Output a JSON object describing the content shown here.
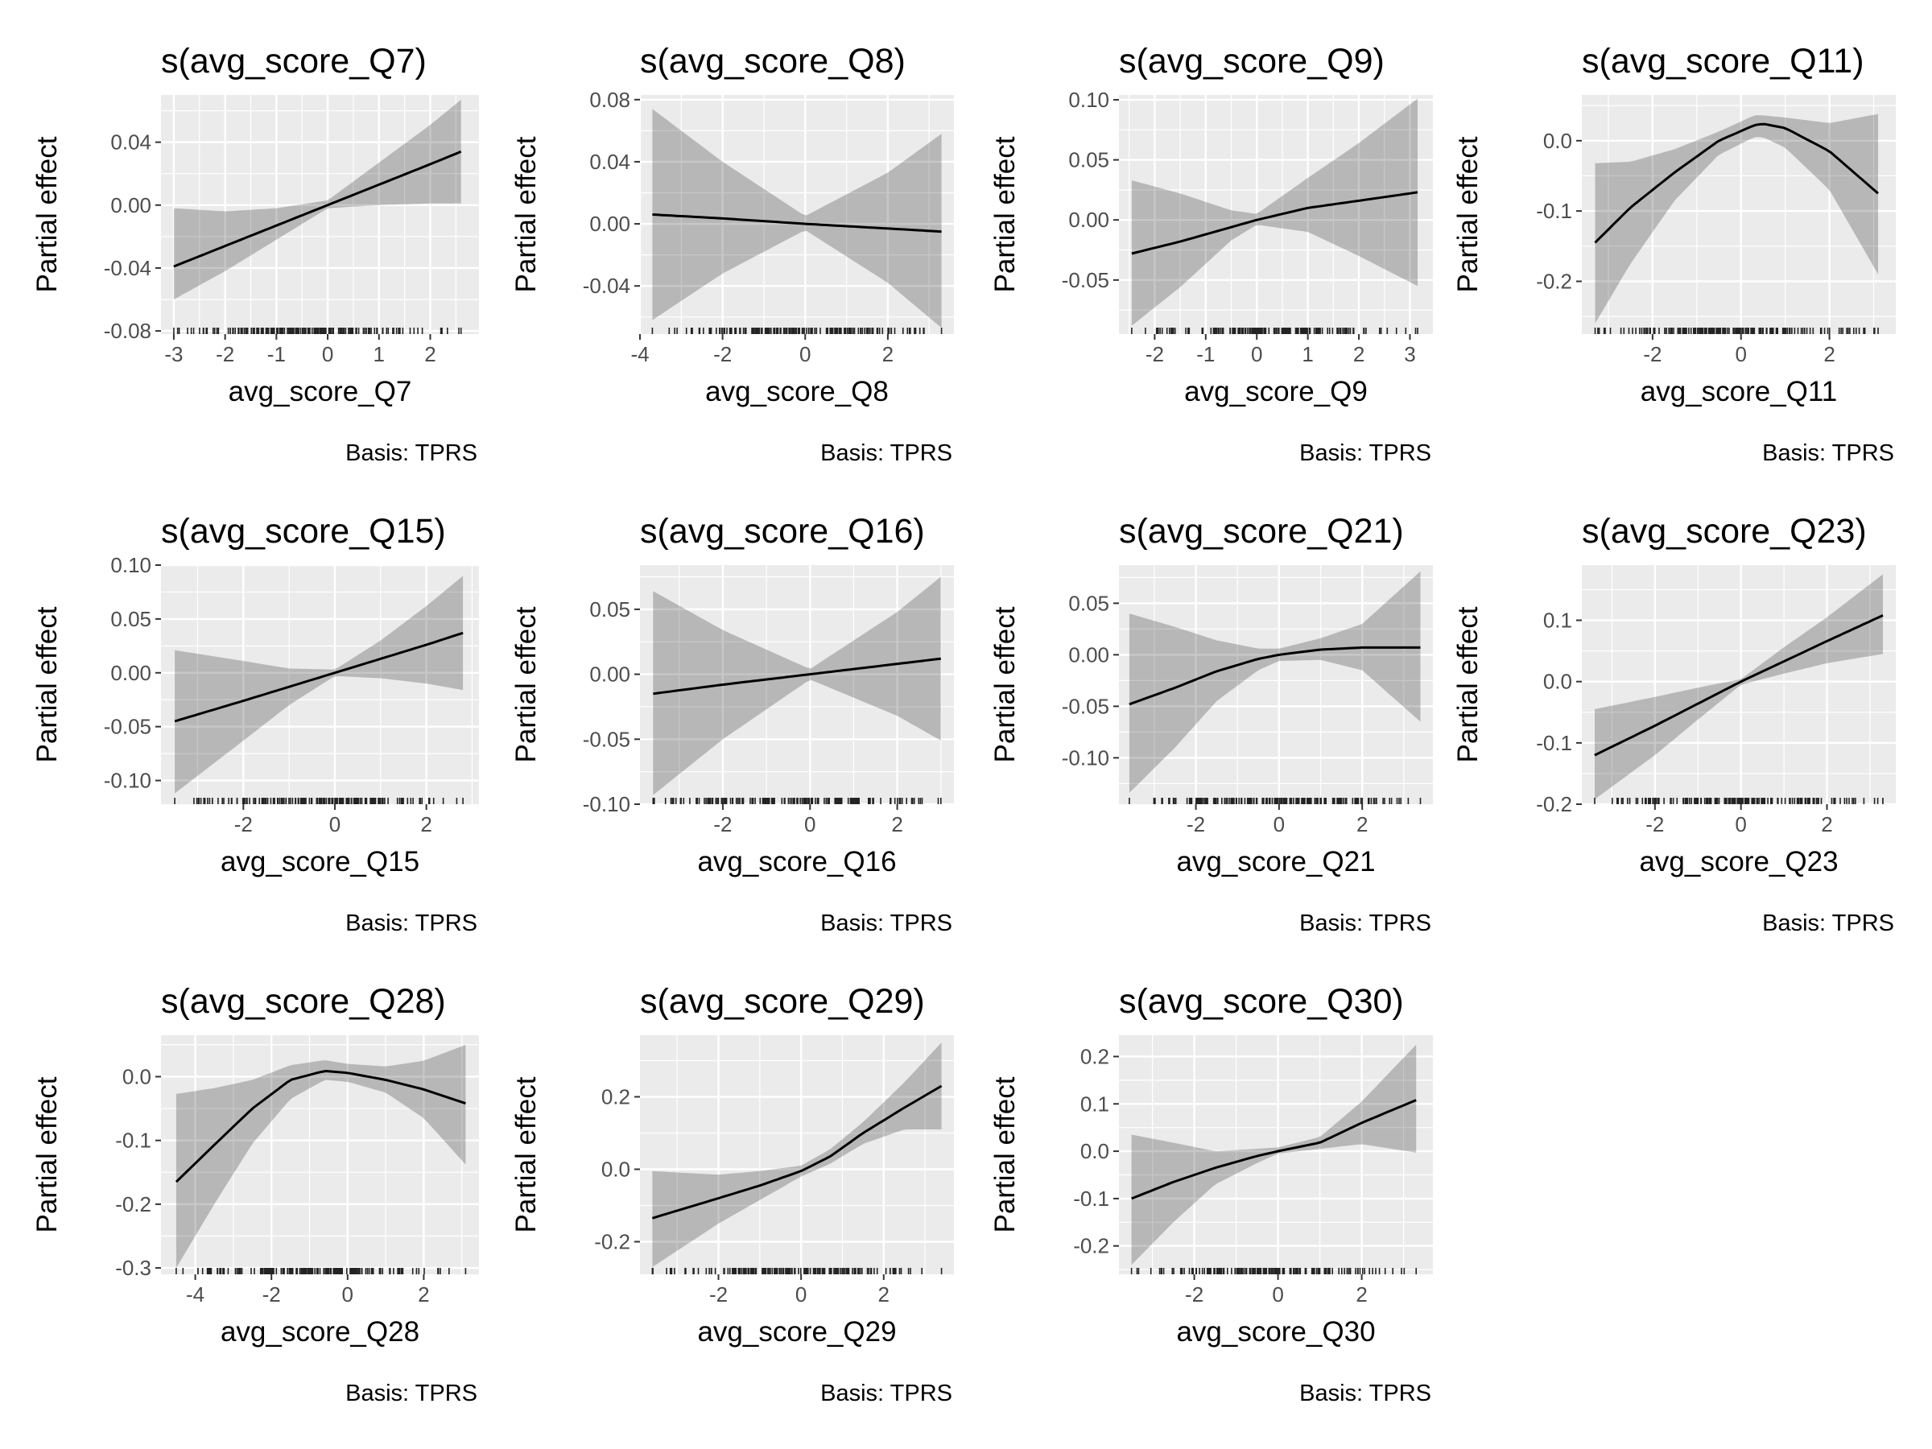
{
  "chart_data": [
    {
      "type": "line",
      "title": "s(avg_score_Q7)",
      "xlabel": "avg_score_Q7",
      "ylabel": "Partial effect",
      "caption": "Basis: TPRS",
      "xlim": [
        -3.25,
        2.95
      ],
      "ylim": [
        -0.082,
        0.07
      ],
      "xticks": [
        -3,
        -2,
        -1,
        0,
        1,
        2
      ],
      "xtick_labels": [
        "-3",
        "-2",
        "-1",
        "0",
        "1",
        "2"
      ],
      "yticks": [
        -0.08,
        -0.04,
        0.0,
        0.04
      ],
      "ytick_labels": [
        "-0.08",
        "-0.04",
        "0.00",
        "0.04"
      ],
      "series": [
        {
          "x": [
            -3.0,
            -2.0,
            -1.0,
            0.0,
            1.0,
            2.0,
            2.6
          ],
          "y": [
            -0.039,
            -0.026,
            -0.013,
            0.0,
            0.013,
            0.026,
            0.034
          ],
          "lower": [
            -0.06,
            -0.042,
            -0.022,
            -0.002,
            0.0,
            0.001,
            0.001
          ],
          "upper": [
            -0.002,
            -0.004,
            -0.002,
            0.003,
            0.027,
            0.051,
            0.067
          ]
        }
      ]
    },
    {
      "type": "line",
      "title": "s(avg_score_Q8)",
      "xlabel": "avg_score_Q8",
      "ylabel": "Partial effect",
      "caption": "Basis: TPRS",
      "xlim": [
        -4.0,
        3.6
      ],
      "ylim": [
        -0.071,
        0.083
      ],
      "xticks": [
        -4,
        -2,
        0,
        2
      ],
      "xtick_labels": [
        "-4",
        "-2",
        "0",
        "2"
      ],
      "yticks": [
        -0.04,
        0.0,
        0.04,
        0.08
      ],
      "ytick_labels": [
        "-0.04",
        "0.00",
        "0.04",
        "0.08"
      ],
      "series": [
        {
          "x": [
            -3.7,
            -2.0,
            0.0,
            2.0,
            3.3
          ],
          "y": [
            0.006,
            0.0035,
            0.0,
            -0.003,
            -0.005
          ],
          "lower": [
            -0.062,
            -0.032,
            -0.004,
            -0.038,
            -0.067
          ],
          "upper": [
            0.074,
            0.04,
            0.005,
            0.033,
            0.058
          ]
        }
      ]
    },
    {
      "type": "line",
      "title": "s(avg_score_Q9)",
      "xlabel": "avg_score_Q9",
      "ylabel": "Partial effect",
      "caption": "Basis: TPRS",
      "xlim": [
        -2.7,
        3.45
      ],
      "ylim": [
        -0.095,
        0.104
      ],
      "xticks": [
        -2,
        -1,
        0,
        1,
        2,
        3
      ],
      "xtick_labels": [
        "-2",
        "-1",
        "0",
        "1",
        "2",
        "3"
      ],
      "yticks": [
        -0.05,
        0.0,
        0.05,
        0.1
      ],
      "ytick_labels": [
        "-0.05",
        "0.00",
        "0.05",
        "0.10"
      ],
      "series": [
        {
          "x": [
            -2.45,
            -1.5,
            -0.5,
            0.0,
            1.0,
            2.0,
            3.15
          ],
          "y": [
            -0.028,
            -0.018,
            -0.006,
            0.0,
            0.01,
            0.016,
            0.023
          ],
          "lower": [
            -0.088,
            -0.056,
            -0.017,
            -0.004,
            -0.01,
            -0.03,
            -0.055
          ],
          "upper": [
            0.033,
            0.022,
            0.008,
            0.005,
            0.035,
            0.064,
            0.101
          ]
        }
      ]
    },
    {
      "type": "line",
      "title": "s(avg_score_Q11)",
      "xlabel": "avg_score_Q11",
      "ylabel": "Partial effect",
      "caption": "Basis: TPRS",
      "xlim": [
        -3.6,
        3.5
      ],
      "ylim": [
        -0.275,
        0.065
      ],
      "xticks": [
        -2,
        0,
        2
      ],
      "xtick_labels": [
        "-2",
        "0",
        "2"
      ],
      "yticks": [
        -0.2,
        -0.1,
        0.0
      ],
      "ytick_labels": [
        "-0.2",
        "-0.1",
        "0.0"
      ],
      "series": [
        {
          "x": [
            -3.3,
            -2.5,
            -1.5,
            -0.5,
            0.3,
            0.5,
            1.0,
            2.0,
            3.1
          ],
          "y": [
            -0.145,
            -0.095,
            -0.045,
            0.0,
            0.022,
            0.024,
            0.018,
            -0.015,
            -0.075
          ],
          "lower": [
            -0.26,
            -0.175,
            -0.085,
            -0.02,
            0.005,
            0.005,
            -0.01,
            -0.07,
            -0.19
          ],
          "upper": [
            -0.032,
            -0.03,
            -0.012,
            0.013,
            0.036,
            0.036,
            0.033,
            0.025,
            0.038
          ]
        }
      ]
    },
    {
      "type": "line",
      "title": "s(avg_score_Q15)",
      "xlabel": "avg_score_Q15",
      "ylabel": "Partial effect",
      "caption": "Basis: TPRS",
      "xlim": [
        -3.8,
        3.15
      ],
      "ylim": [
        -0.122,
        0.1
      ],
      "xticks": [
        -2,
        0,
        2
      ],
      "xtick_labels": [
        "-2",
        "0",
        "2"
      ],
      "yticks": [
        -0.1,
        -0.05,
        0.0,
        0.05,
        0.1
      ],
      "ytick_labels": [
        "-0.10",
        "-0.05",
        "0.00",
        "0.05",
        "0.10"
      ],
      "series": [
        {
          "x": [
            -3.5,
            -2.0,
            -1.0,
            0.0,
            1.0,
            2.0,
            2.8
          ],
          "y": [
            -0.045,
            -0.026,
            -0.013,
            0.0,
            0.013,
            0.026,
            0.037
          ],
          "lower": [
            -0.112,
            -0.063,
            -0.03,
            -0.003,
            -0.005,
            -0.01,
            -0.016
          ],
          "upper": [
            0.021,
            0.011,
            0.004,
            0.003,
            0.03,
            0.062,
            0.09
          ]
        }
      ]
    },
    {
      "type": "line",
      "title": "s(avg_score_Q16)",
      "xlabel": "avg_score_Q16",
      "ylabel": "Partial effect",
      "caption": "Basis: TPRS",
      "xlim": [
        -3.9,
        3.3
      ],
      "ylim": [
        -0.1,
        0.084
      ],
      "xticks": [
        -2,
        0,
        2
      ],
      "xtick_labels": [
        "-2",
        "0",
        "2"
      ],
      "yticks": [
        -0.1,
        -0.05,
        0.0,
        0.05
      ],
      "ytick_labels": [
        "-0.10",
        "-0.05",
        "0.00",
        "0.05"
      ],
      "series": [
        {
          "x": [
            -3.6,
            -2.0,
            0.0,
            2.0,
            3.0
          ],
          "y": [
            -0.015,
            -0.008,
            0.0,
            0.008,
            0.012
          ],
          "lower": [
            -0.093,
            -0.05,
            -0.004,
            -0.032,
            -0.051
          ],
          "upper": [
            0.064,
            0.034,
            0.004,
            0.048,
            0.075
          ]
        }
      ]
    },
    {
      "type": "line",
      "title": "s(avg_score_Q21)",
      "xlabel": "avg_score_Q21",
      "ylabel": "Partial effect",
      "caption": "Basis: TPRS",
      "xlim": [
        -3.85,
        3.7
      ],
      "ylim": [
        -0.145,
        0.087
      ],
      "xticks": [
        -2,
        0,
        2
      ],
      "xtick_labels": [
        "-2",
        "0",
        "2"
      ],
      "yticks": [
        -0.1,
        -0.05,
        0.0,
        0.05
      ],
      "ytick_labels": [
        "-0.10",
        "-0.05",
        "0.00",
        "0.05"
      ],
      "series": [
        {
          "x": [
            -3.6,
            -2.5,
            -1.5,
            -0.5,
            0.0,
            1.0,
            2.0,
            3.4
          ],
          "y": [
            -0.048,
            -0.032,
            -0.016,
            -0.004,
            0.0,
            0.005,
            0.007,
            0.007
          ],
          "lower": [
            -0.134,
            -0.09,
            -0.045,
            -0.015,
            -0.006,
            -0.005,
            -0.015,
            -0.065
          ],
          "upper": [
            0.04,
            0.027,
            0.014,
            0.006,
            0.006,
            0.016,
            0.03,
            0.081
          ]
        }
      ]
    },
    {
      "type": "line",
      "title": "s(avg_score_Q23)",
      "xlabel": "avg_score_Q23",
      "ylabel": "Partial effect",
      "caption": "Basis: TPRS",
      "xlim": [
        -3.7,
        3.6
      ],
      "ylim": [
        -0.2,
        0.19
      ],
      "xticks": [
        -2,
        0,
        2
      ],
      "xtick_labels": [
        "-2",
        "0",
        "2"
      ],
      "yticks": [
        -0.2,
        -0.1,
        0.0,
        0.1
      ],
      "ytick_labels": [
        "-0.2",
        "-0.1",
        "0.0",
        "0.1"
      ],
      "series": [
        {
          "x": [
            -3.4,
            -2.0,
            -1.0,
            0.0,
            1.0,
            2.0,
            3.3
          ],
          "y": [
            -0.12,
            -0.072,
            -0.036,
            0.0,
            0.033,
            0.066,
            0.108
          ],
          "lower": [
            -0.192,
            -0.12,
            -0.062,
            -0.005,
            0.013,
            0.03,
            0.045
          ],
          "upper": [
            -0.045,
            -0.025,
            -0.01,
            0.004,
            0.056,
            0.105,
            0.175
          ]
        }
      ]
    },
    {
      "type": "line",
      "title": "s(avg_score_Q28)",
      "xlabel": "avg_score_Q28",
      "ylabel": "Partial effect",
      "caption": "Basis: TPRS",
      "xlim": [
        -4.9,
        3.45
      ],
      "ylim": [
        -0.31,
        0.065
      ],
      "xticks": [
        -4,
        -2,
        0,
        2
      ],
      "xtick_labels": [
        "-4",
        "-2",
        "0",
        "2"
      ],
      "yticks": [
        -0.3,
        -0.2,
        -0.1,
        0.0
      ],
      "ytick_labels": [
        "-0.3",
        "-0.2",
        "-0.1",
        "0.0"
      ],
      "series": [
        {
          "x": [
            -4.5,
            -3.5,
            -2.5,
            -1.5,
            -0.6,
            0.0,
            1.0,
            2.0,
            3.1
          ],
          "y": [
            -0.165,
            -0.107,
            -0.05,
            -0.005,
            0.009,
            0.006,
            -0.005,
            -0.02,
            -0.042
          ],
          "lower": [
            -0.3,
            -0.2,
            -0.105,
            -0.035,
            -0.005,
            -0.008,
            -0.025,
            -0.065,
            -0.138
          ],
          "upper": [
            -0.027,
            -0.018,
            -0.005,
            0.018,
            0.026,
            0.02,
            0.016,
            0.025,
            0.05
          ]
        }
      ]
    },
    {
      "type": "line",
      "title": "s(avg_score_Q29)",
      "xlabel": "avg_score_Q29",
      "ylabel": "Partial effect",
      "caption": "Basis: TPRS",
      "xlim": [
        -3.9,
        3.7
      ],
      "ylim": [
        -0.29,
        0.37
      ],
      "xticks": [
        -2,
        0,
        2
      ],
      "xtick_labels": [
        "-2",
        "0",
        "2"
      ],
      "yticks": [
        -0.2,
        0.0,
        0.2
      ],
      "ytick_labels": [
        "-0.2",
        "0.0",
        "0.2"
      ],
      "series": [
        {
          "x": [
            -3.6,
            -2.0,
            -1.0,
            0.0,
            0.7,
            1.5,
            2.5,
            3.4
          ],
          "y": [
            -0.135,
            -0.08,
            -0.045,
            -0.005,
            0.035,
            0.1,
            0.17,
            0.23
          ],
          "lower": [
            -0.27,
            -0.15,
            -0.085,
            -0.02,
            0.015,
            0.07,
            0.11,
            0.11
          ],
          "upper": [
            -0.005,
            -0.015,
            -0.005,
            0.01,
            0.055,
            0.13,
            0.24,
            0.35
          ]
        }
      ]
    },
    {
      "type": "line",
      "title": "s(avg_score_Q30)",
      "xlabel": "avg_score_Q30",
      "ylabel": "Partial effect",
      "caption": "Basis: TPRS",
      "xlim": [
        -3.8,
        3.7
      ],
      "ylim": [
        -0.26,
        0.245
      ],
      "xticks": [
        -2,
        0,
        2
      ],
      "xtick_labels": [
        "-2",
        "0",
        "2"
      ],
      "yticks": [
        -0.2,
        -0.1,
        0.0,
        0.1,
        0.2
      ],
      "ytick_labels": [
        "-0.2",
        "-0.1",
        "0.0",
        "0.1",
        "0.2"
      ],
      "series": [
        {
          "x": [
            -3.5,
            -2.5,
            -1.5,
            -0.5,
            0.0,
            1.0,
            2.0,
            3.3
          ],
          "y": [
            -0.1,
            -0.065,
            -0.035,
            -0.01,
            0.0,
            0.018,
            0.06,
            0.108
          ],
          "lower": [
            -0.24,
            -0.15,
            -0.07,
            -0.025,
            -0.005,
            0.005,
            0.015,
            -0.003
          ],
          "upper": [
            0.035,
            0.018,
            0.0,
            0.005,
            0.008,
            0.03,
            0.105,
            0.225
          ]
        }
      ]
    }
  ]
}
